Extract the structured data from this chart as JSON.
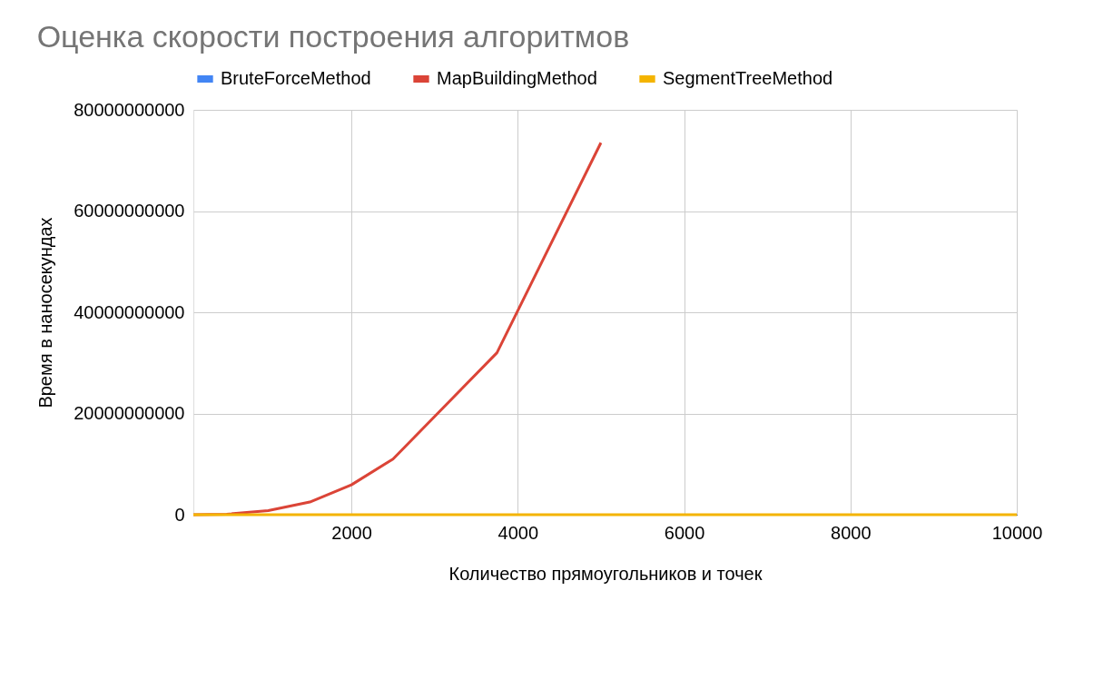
{
  "chart_data": {
    "type": "line",
    "title": "Оценка скорости построения алгоритмов",
    "xlabel": "Количество прямоугольников и точек",
    "ylabel": "Время в наносекундах",
    "x": [
      100,
      500,
      1000,
      1500,
      2000,
      2500,
      3750,
      5000,
      7500,
      10000
    ],
    "series": [
      {
        "name": "BruteForceMethod",
        "color": "#4285f4",
        "values": [
          null,
          null,
          null,
          null,
          null,
          null,
          null,
          null,
          null,
          null
        ]
      },
      {
        "name": "MapBuildingMethod",
        "color": "#db4437",
        "values": [
          0,
          100000000,
          800000000,
          2500000000,
          5900000000,
          11000000000,
          32000000000,
          73500000000,
          null,
          null
        ]
      },
      {
        "name": "SegmentTreeMethod",
        "color": "#f4b400",
        "values": [
          0,
          0,
          0,
          0,
          0,
          0,
          0,
          0,
          0,
          0
        ]
      }
    ],
    "xlim": [
      100,
      10000
    ],
    "xticks": [
      2000,
      4000,
      6000,
      8000,
      10000
    ],
    "ylim": [
      0,
      80000000000
    ],
    "yticks": [
      0,
      20000000000,
      40000000000,
      60000000000,
      80000000000
    ],
    "grid": true,
    "legend": "top",
    "marker": "none",
    "line_style": "solid"
  }
}
